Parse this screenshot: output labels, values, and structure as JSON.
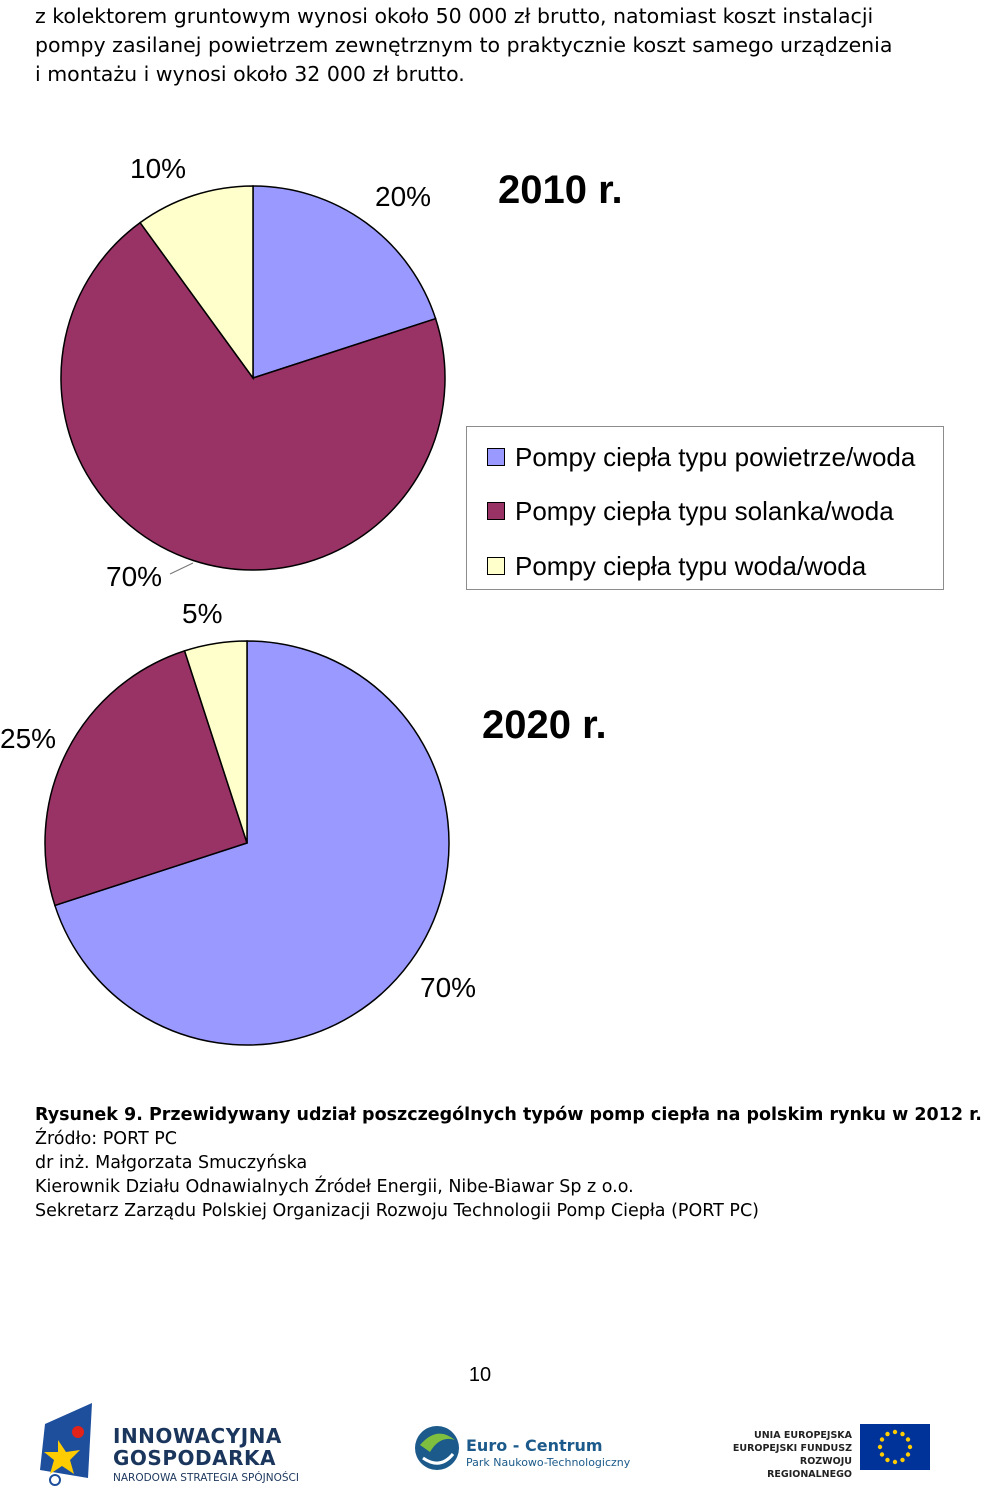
{
  "intro": {
    "line1": "z kolektorem gruntowym wynosi około 50 000 zł brutto, natomiast koszt instalacji",
    "line2": "pompy zasilanej powietrzem zewnętrznym to praktycznie koszt samego urządzenia",
    "line3": "i montażu i wynosi około 32 000 zł brutto."
  },
  "chart_data": [
    {
      "type": "pie",
      "title": "2010 r.",
      "categories": [
        "Pompy ciepła typu powietrze/woda",
        "Pompy ciepła typu solanka/woda",
        "Pompy ciepła typu woda/woda"
      ],
      "values": [
        20,
        70,
        10
      ],
      "labels": [
        "20%",
        "70%",
        "10%"
      ],
      "colors": [
        "#9999ff",
        "#993366",
        "#ffffcc"
      ],
      "legend_position": "right"
    },
    {
      "type": "pie",
      "title": "2020 r.",
      "categories": [
        "Pompy ciepła typu powietrze/woda",
        "Pompy ciepła typu solanka/woda",
        "Pompy ciepła typu woda/woda"
      ],
      "values": [
        70,
        25,
        5
      ],
      "labels": [
        "70%",
        "25%",
        "5%"
      ],
      "colors": [
        "#9999ff",
        "#993366",
        "#ffffcc"
      ]
    }
  ],
  "legend": [
    {
      "label": "Pompy ciepła typu powietrze/woda",
      "color": "#9999ff"
    },
    {
      "label": "Pompy ciepła typu solanka/woda",
      "color": "#993366"
    },
    {
      "label": "Pompy ciepła typu woda/woda",
      "color": "#ffffcc"
    }
  ],
  "caption": {
    "figure": "Rysunek 9. Przewidywany udział poszczególnych typów pomp ciepła na polskim rynku w 2012 r.",
    "source": "Źródło: PORT PC",
    "author": "dr inż. Małgorzata Smuczyńska",
    "role1": "Kierownik Działu Odnawialnych Źródeł Energii, Nibe-Biawar Sp z o.o.",
    "role2": "Sekretarz Zarządu Polskiej Organizacji Rozwoju Technologii Pomp Ciepła (PORT PC)"
  },
  "page_number": "10",
  "footer": {
    "ig_line1": "INNOWACYJNA",
    "ig_line2": "GOSPODARKA",
    "ig_line3": "NARODOWA STRATEGIA SPÓJNOŚCI",
    "ec_line1": "Euro - Centrum",
    "ec_line2": "Park Naukowo-Technologiczny",
    "ue_line1": "UNIA EUROPEJSKA",
    "ue_line2": "EUROPEJSKI FUNDUSZ",
    "ue_line3": "ROZWOJU REGIONALNEGO"
  }
}
